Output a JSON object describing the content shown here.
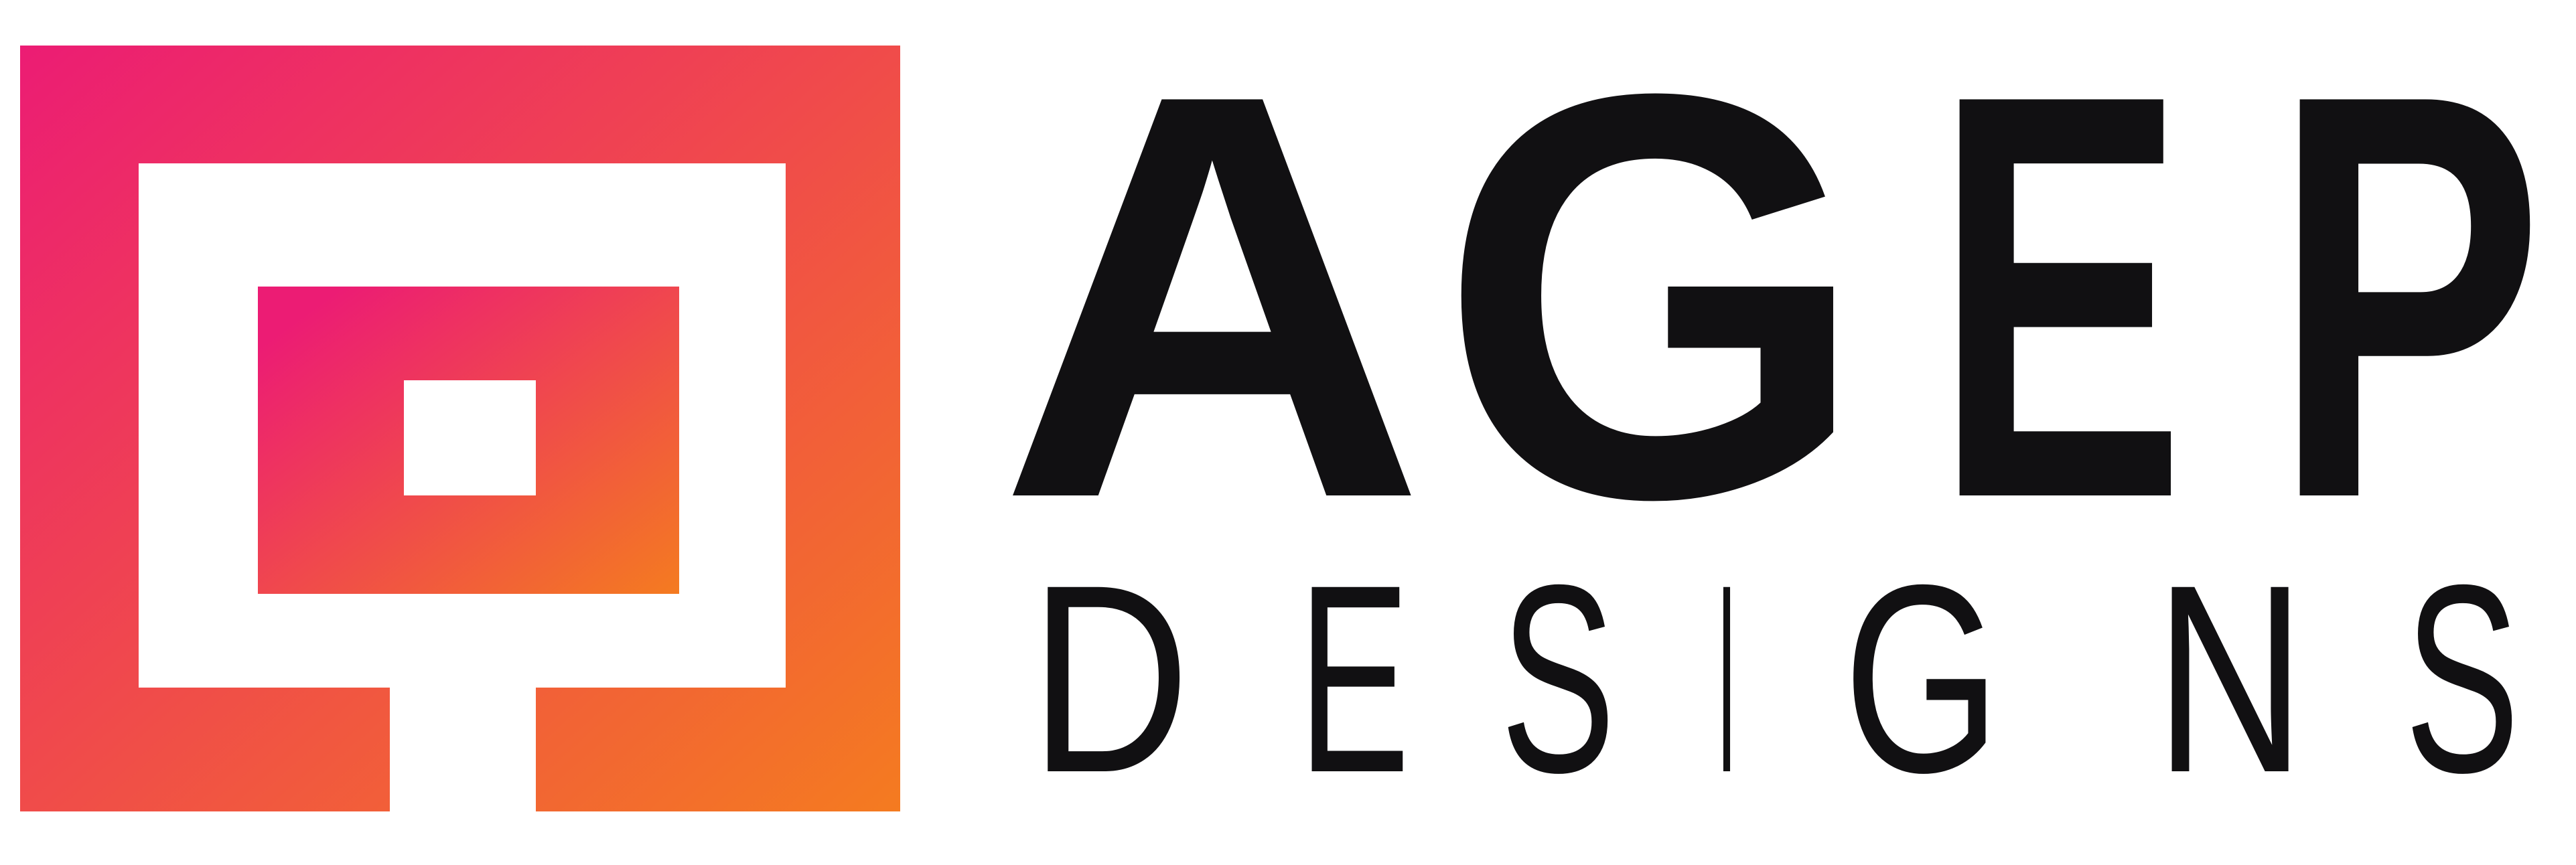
{
  "logo": {
    "brand_name": "AGEP",
    "tagline": "DESIGNS",
    "brand_letters": [
      "A",
      "G",
      "E",
      "P"
    ],
    "tagline_letters": [
      "D",
      "E",
      "S",
      "I",
      "G",
      "N",
      "S"
    ],
    "colors": {
      "gradient_start": "#ec1c74",
      "gradient_end": "#f47b20",
      "text": "#111012",
      "background": "#ffffff"
    },
    "mark_icon": "nested-square-maze-icon"
  }
}
